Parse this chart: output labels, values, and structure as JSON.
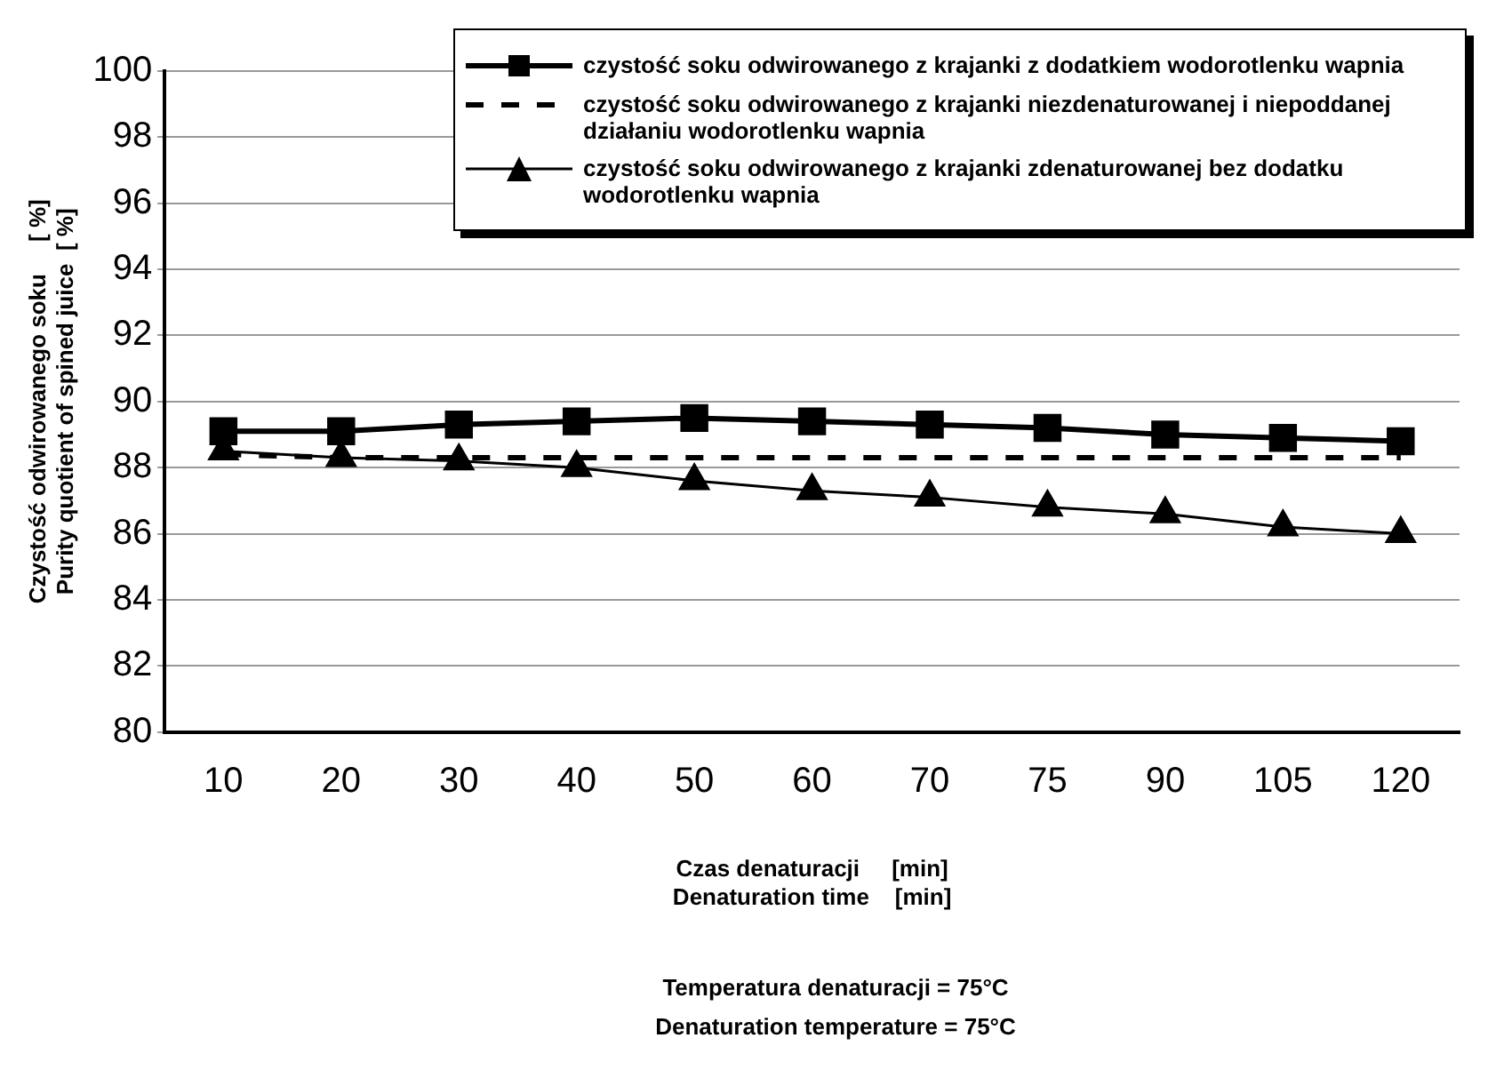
{
  "chart_data": {
    "type": "line",
    "xlabel": "Czas denaturacji     [min]\nDenaturation time    [min]",
    "ylabel": "Czystość odwirowanego soku     [ %]\nPurity quotient of spined juice  [ %]",
    "categories": [
      "10",
      "20",
      "30",
      "40",
      "50",
      "60",
      "70",
      "75",
      "90",
      "105",
      "120"
    ],
    "ylim": [
      80,
      100
    ],
    "yticks": [
      80,
      82,
      84,
      86,
      88,
      90,
      92,
      94,
      96,
      98,
      100
    ],
    "grid": "y",
    "legend": "top right",
    "series": [
      {
        "name": "czystość soku odwirowanego z krajanki  z dodatkiem wodorotlenku wapnia",
        "color": "#000000",
        "marker": "square",
        "line_style": "solid",
        "values": [
          89.1,
          89.1,
          89.3,
          89.4,
          89.5,
          89.4,
          89.3,
          89.2,
          89.0,
          88.9,
          88.8
        ]
      },
      {
        "name": "czystość soku odwirowanego z krajanki niezdenaturowanej i niepoddanej działaniu wodorotlenku wapnia",
        "color": "#000000",
        "marker": "none",
        "line_style": "dashed",
        "values": [
          88.4,
          88.3,
          88.3,
          88.3,
          88.3,
          88.3,
          88.3,
          88.3,
          88.3,
          88.3,
          88.3
        ]
      },
      {
        "name": "czystość soku odwirowanego z krajanki zdenaturowanej bez dodatku wodorotlenku wapnia",
        "color": "#000000",
        "marker": "triangle",
        "line_style": "solid",
        "values": [
          88.5,
          88.3,
          88.2,
          88.0,
          87.6,
          87.3,
          87.1,
          86.8,
          86.6,
          86.2,
          86.0
        ]
      }
    ],
    "annotations": [
      "Temperatura denaturacji = 75°C",
      "Denaturation temperature = 75°C"
    ]
  }
}
